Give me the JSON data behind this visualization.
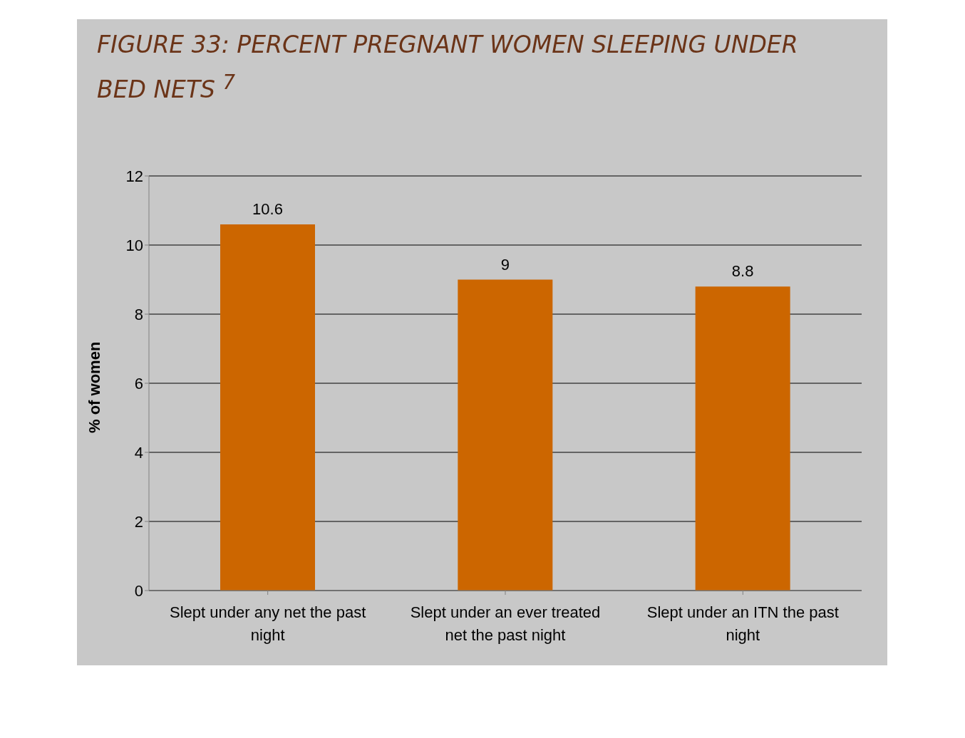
{
  "chart_data": {
    "type": "bar",
    "title": "FIGURE 33: PERCENT PREGNANT WOMEN SLEEPING UNDER BED NETS $^{7}$",
    "ylabel": "% of women",
    "categories": [
      "Slept under any net the past night",
      "Slept under an ever treated net the past night",
      "Slept under an ITN the past night"
    ],
    "values": [
      10.6,
      9,
      8.8
    ],
    "color": "#cc6600",
    "ylim": [
      0,
      12
    ],
    "yticks": [
      0,
      2,
      4,
      6,
      8,
      10,
      12
    ],
    "grid": "y",
    "data_labels": true
  }
}
